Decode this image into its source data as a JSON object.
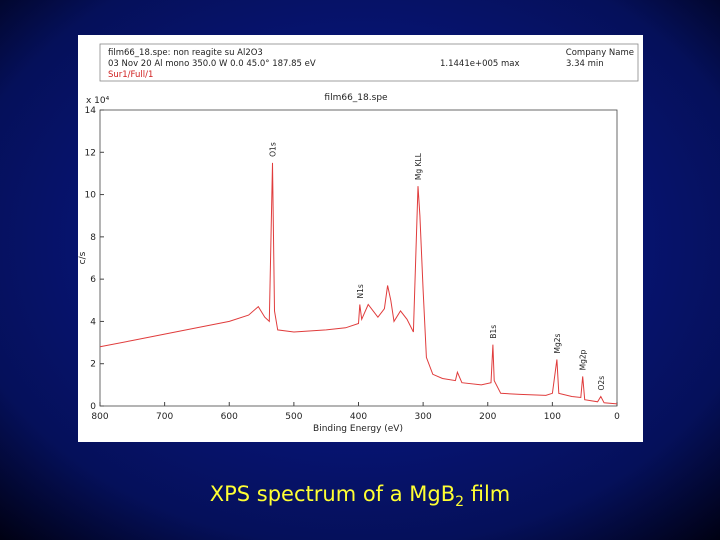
{
  "chart_data": {
    "type": "line",
    "header": {
      "file": "film66_18.spe: non reagite su Al2O3",
      "company": "Company Name",
      "conditions": "03 Nov 20   Al mono   350.0 W   0.0   45.0°   187.85 eV",
      "max": "1.1441e+005 max",
      "min": "3.34 min",
      "region": "Sur1/Full/1"
    },
    "title": "film66_18.spe",
    "y_multiplier": "x 10⁴",
    "xlabel": "Binding Energy (eV)",
    "ylabel": "c/s",
    "color": "#e03c3c",
    "xlim": [
      800,
      0
    ],
    "xticks": [
      800,
      700,
      600,
      500,
      400,
      300,
      200,
      100,
      0
    ],
    "ylim": [
      0,
      14
    ],
    "yticks": [
      0,
      2,
      4,
      6,
      8,
      10,
      12,
      14
    ],
    "x": [
      800,
      750,
      700,
      650,
      600,
      570,
      555,
      545,
      538,
      533,
      530,
      525,
      500,
      450,
      420,
      400,
      398,
      395,
      385,
      370,
      360,
      355,
      350,
      345,
      335,
      325,
      315,
      308,
      305,
      300,
      295,
      285,
      270,
      250,
      247,
      240,
      210,
      195,
      192,
      190,
      180,
      150,
      110,
      100,
      93,
      90,
      70,
      56,
      53,
      50,
      30,
      25,
      20,
      0
    ],
    "values": [
      2.8,
      3.1,
      3.4,
      3.7,
      4.0,
      4.3,
      4.7,
      4.2,
      4.0,
      11.5,
      4.5,
      3.6,
      3.5,
      3.6,
      3.7,
      3.9,
      4.8,
      4.1,
      4.8,
      4.2,
      4.6,
      5.7,
      5.0,
      4.0,
      4.5,
      4.1,
      3.5,
      10.4,
      9.0,
      5.5,
      2.3,
      1.5,
      1.3,
      1.2,
      1.6,
      1.1,
      1.0,
      1.1,
      2.9,
      1.2,
      0.6,
      0.55,
      0.5,
      0.6,
      2.2,
      0.6,
      0.45,
      0.4,
      1.4,
      0.3,
      0.2,
      0.45,
      0.15,
      0.1
    ],
    "annotations": [
      {
        "text": "O1s",
        "x": 533
      },
      {
        "text": "Mg KLL",
        "x": 308
      },
      {
        "text": "N1s",
        "x": 398
      },
      {
        "text": "B1s",
        "x": 192
      },
      {
        "text": "Mg2s",
        "x": 93
      },
      {
        "text": "Mg2p",
        "x": 53
      },
      {
        "text": "O2s",
        "x": 25
      }
    ]
  },
  "caption": {
    "text": "XPS spectrum of a MgB",
    "sub": "2",
    "tail": " film"
  }
}
